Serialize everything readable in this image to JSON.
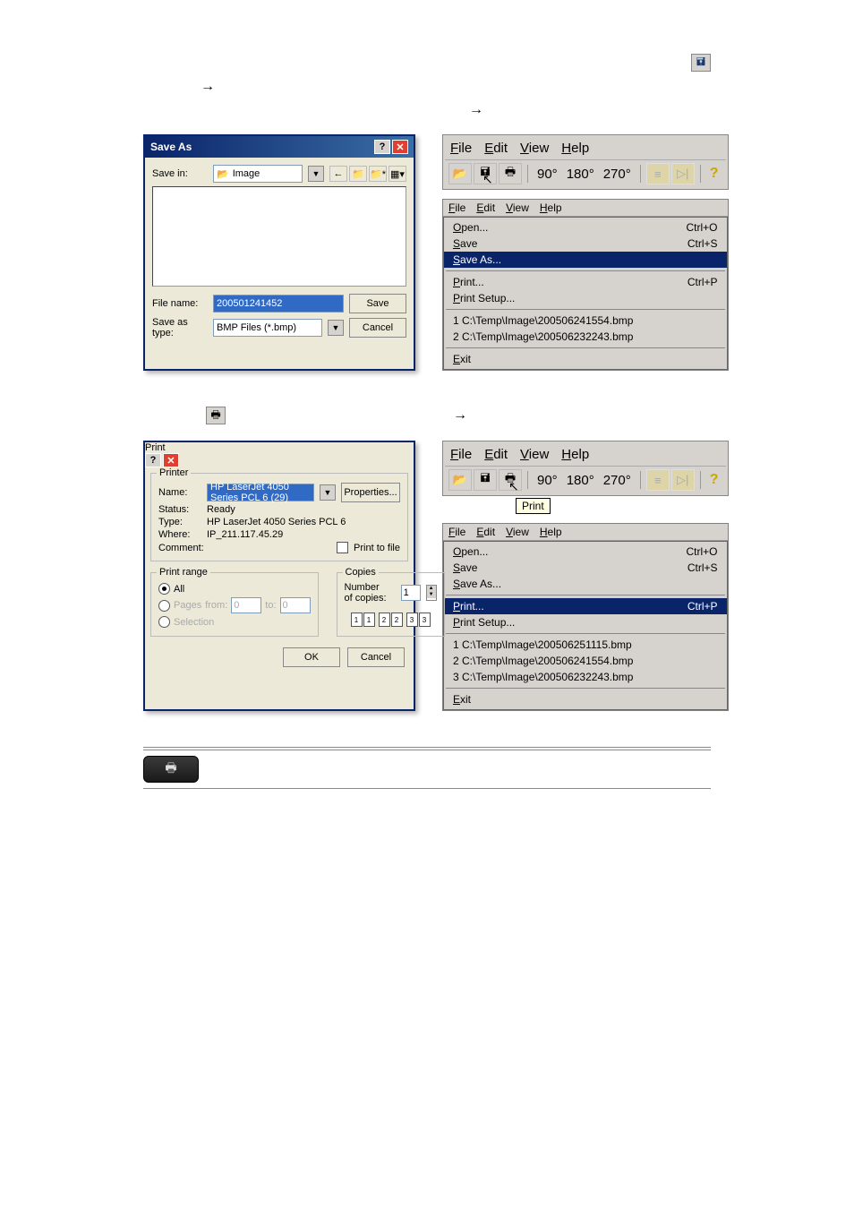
{
  "icons": {
    "save_floppy": "🖬",
    "print": "🖶",
    "open": "📂",
    "help": "?"
  },
  "toolbar_big": {
    "menu": [
      {
        "html": "<u>F</u>ile"
      },
      {
        "html": "<u>E</u>dit"
      },
      {
        "html": "<u>V</u>iew"
      },
      {
        "html": "<u>H</u>elp"
      }
    ],
    "rot": [
      "90°",
      "180°",
      "270°"
    ],
    "print_tooltip": "Print"
  },
  "small_menu": {
    "items": [
      "File",
      "Edit",
      "View",
      "Help"
    ]
  },
  "save_dropdown": {
    "items": [
      {
        "label": "Open...",
        "accel": "Ctrl+O"
      },
      {
        "label": "Save",
        "accel": "Ctrl+S"
      },
      {
        "label": "Save As...",
        "accel": "",
        "hl": true
      },
      {
        "sep": true
      },
      {
        "label": "Print...",
        "accel": "Ctrl+P"
      },
      {
        "label": "Print Setup...",
        "accel": ""
      },
      {
        "sep": true
      },
      {
        "label": "1 C:\\Temp\\Image\\200506241554.bmp",
        "accel": ""
      },
      {
        "label": "2 C:\\Temp\\Image\\200506232243.bmp",
        "accel": ""
      },
      {
        "sep": true
      },
      {
        "label": "Exit",
        "accel": ""
      }
    ]
  },
  "print_dropdown": {
    "items": [
      {
        "label": "Open...",
        "accel": "Ctrl+O"
      },
      {
        "label": "Save",
        "accel": "Ctrl+S"
      },
      {
        "label": "Save As...",
        "accel": ""
      },
      {
        "sep": true
      },
      {
        "label": "Print...",
        "accel": "Ctrl+P",
        "hl": true
      },
      {
        "label": "Print Setup...",
        "accel": ""
      },
      {
        "sep": true
      },
      {
        "label": "1 C:\\Temp\\Image\\200506251115.bmp",
        "accel": ""
      },
      {
        "label": "2 C:\\Temp\\Image\\200506241554.bmp",
        "accel": ""
      },
      {
        "label": "3 C:\\Temp\\Image\\200506232243.bmp",
        "accel": ""
      },
      {
        "sep": true
      },
      {
        "label": "Exit",
        "accel": ""
      }
    ]
  },
  "save_as": {
    "title": "Save As",
    "save_in_label": "Save in:",
    "folder": "Image",
    "file_name_label": "File name:",
    "file_name_value": "200501241452",
    "type_label": "Save as type:",
    "type_value": "BMP Files (*.bmp)",
    "save_btn": "Save",
    "cancel_btn": "Cancel"
  },
  "print": {
    "title": "Print",
    "printer_legend": "Printer",
    "name_label": "Name:",
    "name_value": "HP LaserJet 4050 Series PCL 6 (29)",
    "properties_btn": "Properties...",
    "status_label": "Status:",
    "status_value": "Ready",
    "type_label": "Type:",
    "type_value": "HP LaserJet 4050 Series PCL 6",
    "where_label": "Where:",
    "where_value": "IP_211.117.45.29",
    "comment_label": "Comment:",
    "print_to_file": "Print to file",
    "range_legend": "Print range",
    "range_all": "All",
    "range_pages": "Pages",
    "range_from": "from:",
    "range_to": "to:",
    "range_sel": "Selection",
    "copies_legend": "Copies",
    "copies_label": "Number of copies:",
    "copies_value": "1",
    "ok_btn": "OK",
    "cancel_btn": "Cancel"
  },
  "page_from": "0",
  "page_to": "0"
}
